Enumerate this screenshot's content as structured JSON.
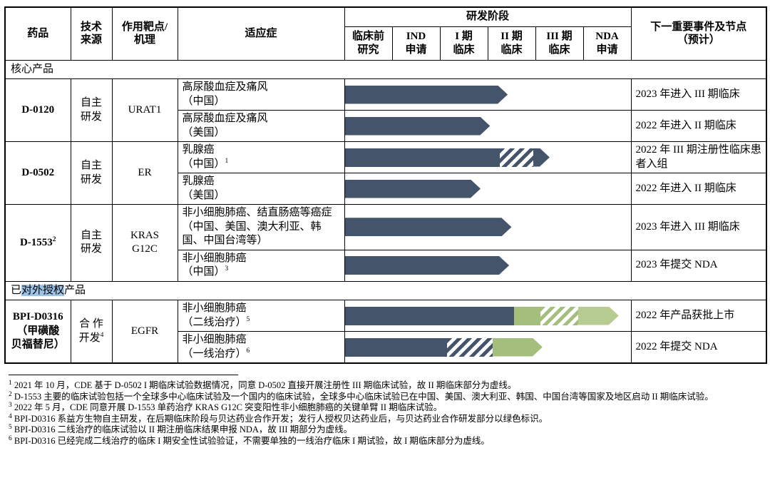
{
  "colors": {
    "arrow_dark": "#44546A",
    "arrow_green": "#A4BE7B",
    "arrow_lightgreen": "#B7CC90",
    "selection_highlight": "#9DC3E6"
  },
  "table": {
    "header": {
      "drug": "药品",
      "source": "技术\n来源",
      "target": "作用靶点/\n机理",
      "indication": "适应症",
      "stage_group": "研发阶段",
      "next": "下一重要事件及节点\n（预计）",
      "stages": [
        "临床前\n研究",
        "IND\n申请",
        "I 期\n临床",
        "II 期\n临床",
        "III 期\n临床",
        "NDA\n申请"
      ]
    },
    "body": [
      {
        "type": "section",
        "pre": "核心产品",
        "highlight": "",
        "post": ""
      },
      {
        "type": "group",
        "drug": {
          "text": "D-0120",
          "sup": ""
        },
        "source": {
          "text": "自主\n研发",
          "sup": ""
        },
        "target": "URAT1",
        "rows": [
          {
            "indication": {
              "text": "高尿酸血症及痛风\n（中国）",
              "sup": ""
            },
            "next": "2023 年进入 III 期临床",
            "bar": [
              {
                "style": "dark",
                "to": 3.42,
                "tip": true
              }
            ]
          },
          {
            "indication": {
              "text": "高尿酸血症及痛风\n（美国）",
              "sup": ""
            },
            "next": "2022 年进入 II 期临床",
            "bar": [
              {
                "style": "dark",
                "to": 3.05,
                "tip": true
              }
            ]
          }
        ]
      },
      {
        "type": "group",
        "drug": {
          "text": "D-0502",
          "sup": ""
        },
        "source": {
          "text": "自主\n研发",
          "sup": ""
        },
        "target": "ER",
        "rows": [
          {
            "indication": {
              "text": "乳腺癌\n（中国）",
              "sup": "1"
            },
            "next": "2022 年 III 期注册性临床患者入组",
            "bar": [
              {
                "style": "dark",
                "to": 3.25
              },
              {
                "style": "dark-hatch",
                "to": 3.95
              },
              {
                "style": "dark",
                "to": 4.3,
                "tip": true
              }
            ]
          },
          {
            "indication": {
              "text": "乳腺癌\n（美国）",
              "sup": ""
            },
            "next": "2022 年进入 II 期临床",
            "bar": [
              {
                "style": "dark",
                "to": 2.85,
                "tip": true
              }
            ]
          }
        ]
      },
      {
        "type": "group",
        "drug": {
          "text": "D-1553",
          "sup": "2"
        },
        "source": {
          "text": "自主\n研发",
          "sup": ""
        },
        "target": "KRAS\nG12C",
        "rows": [
          {
            "indication": {
              "text": "非小细胞肺癌、结直肠癌等癌症（中国、美国、澳大利亚、韩国、中国台湾等）",
              "sup": ""
            },
            "next": "2023 年进入 III 期临床",
            "bar": [
              {
                "style": "dark",
                "to": 3.5,
                "tip": true
              }
            ]
          },
          {
            "indication": {
              "text": "非小细胞肺癌\n（中国）",
              "sup": "3"
            },
            "next": "2023 年提交 NDA",
            "bar": [
              {
                "style": "dark",
                "to": 3.45,
                "tip": true
              }
            ]
          }
        ]
      },
      {
        "type": "section",
        "pre": "已",
        "highlight": "对外授权",
        "post": "产品"
      },
      {
        "type": "group",
        "drug": {
          "text": "BPI-D0316\n（甲磺酸\n贝福替尼）",
          "sup": ""
        },
        "source": {
          "text": "合 作\n开发",
          "sup": "4"
        },
        "target": "EGFR",
        "rows": [
          {
            "indication": {
              "text": "非小细胞肺癌\n（二线治疗）",
              "sup": "5"
            },
            "next": "2022 年产品获批上市",
            "bar": [
              {
                "style": "dark",
                "to": 3.55
              },
              {
                "style": "green",
                "to": 4.1
              },
              {
                "style": "green-hatch",
                "to": 4.9
              },
              {
                "style": "lightgreen",
                "to": 5.75,
                "tip": true
              }
            ]
          },
          {
            "indication": {
              "text": "非小细胞肺癌\n（一线治疗）",
              "sup": "6"
            },
            "next": "2022 年提交 NDA",
            "bar": [
              {
                "style": "dark",
                "to": 2.15
              },
              {
                "style": "dark-hatch",
                "to": 3.1
              },
              {
                "style": "green",
                "to": 4.15,
                "tip": true
              }
            ]
          }
        ]
      }
    ]
  },
  "footnotes": [
    {
      "sup": "1",
      "text": "2021 年 10 月，CDE 基于 D-0502 I 期临床试验数据情况，同意 D-0502 直接开展注册性 III 期临床试验，故 II 期临床部分为虚线。"
    },
    {
      "sup": "2",
      "text": "D-1553 主要的临床试验包括一个全球多中心临床试验及一个国内的临床试验，全球多中心临床试验已在中国、美国、澳大利亚、韩国、中国台湾等国家及地区启动 II 期临床试验。"
    },
    {
      "sup": "3",
      "text": "2022 年 5 月，CDE 同意开展 D-1553 单药治疗 KRAS G12C 突变阳性非小细胞肺癌的关键单臂 II 期临床试验。"
    },
    {
      "sup": "4",
      "text": "BPI-D0316 系益方生物自主研发，在后期临床阶段与贝达药业合作开发；发行人授权贝达药业后，与贝达药业合作研发部分以绿色标识。"
    },
    {
      "sup": "5",
      "text": "BPI-D0316 二线治疗的临床试验以 II 期注册临床结果申报 NDA，故 III 期部分为虚线。"
    },
    {
      "sup": "6",
      "text": "BPI-D0316 已经完成二线治疗的临床 I 期安全性试验验证，不需要单独的一线治疗临床 I 期试验，故 I 期临床部分为虚线。"
    }
  ]
}
